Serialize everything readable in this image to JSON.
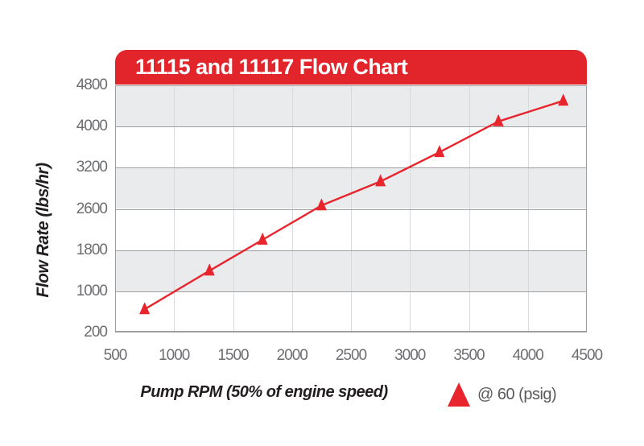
{
  "title": "11115 and 11117 Flow Chart",
  "colors": {
    "banner_red": "#e2242b",
    "line_red": "#e8242c",
    "band_gray": "#eaebed",
    "band_white": "#ffffff",
    "hline_gray": "#9c9ea0",
    "vline_gray": "#d9dadc",
    "tick_text": "#6d6e71",
    "axis_title_text": "#221e1f",
    "legend_text": "#58595b",
    "title_text": "#ffffff"
  },
  "chart_data": {
    "type": "line",
    "title": "11115 and 11117 Flow Chart",
    "xlabel": "Pump RPM (50% of engine speed)",
    "ylabel": "Flow Rate (lbs/hr)",
    "x_ticks": [
      500,
      1000,
      1500,
      2000,
      2500,
      3000,
      3500,
      4000,
      4500
    ],
    "y_ticks": [
      4800,
      4000,
      3200,
      2600,
      1800,
      1000,
      200
    ],
    "xlim": [
      500,
      4500
    ],
    "y_axis_note": "y tick labels are printed at equal spacing (non-linear scale as shown)",
    "grid": {
      "horizontal_bands_alternating": true,
      "vertical_gridlines_at": [
        1000,
        1500,
        2000,
        2500,
        3000,
        3500,
        4000
      ]
    },
    "legend": {
      "label": "@ 60 (psig)",
      "marker": "red-triangle-up",
      "position": "bottom-right"
    },
    "series": [
      {
        "name": "@ 60 (psig)",
        "color": "#e8242c",
        "marker": "triangle-up",
        "points": [
          [
            750,
            650
          ],
          [
            1300,
            1400
          ],
          [
            1750,
            2000
          ],
          [
            2250,
            2650
          ],
          [
            2750,
            3000
          ],
          [
            3250,
            3500
          ],
          [
            3750,
            4100
          ],
          [
            4300,
            4500
          ]
        ]
      }
    ]
  }
}
